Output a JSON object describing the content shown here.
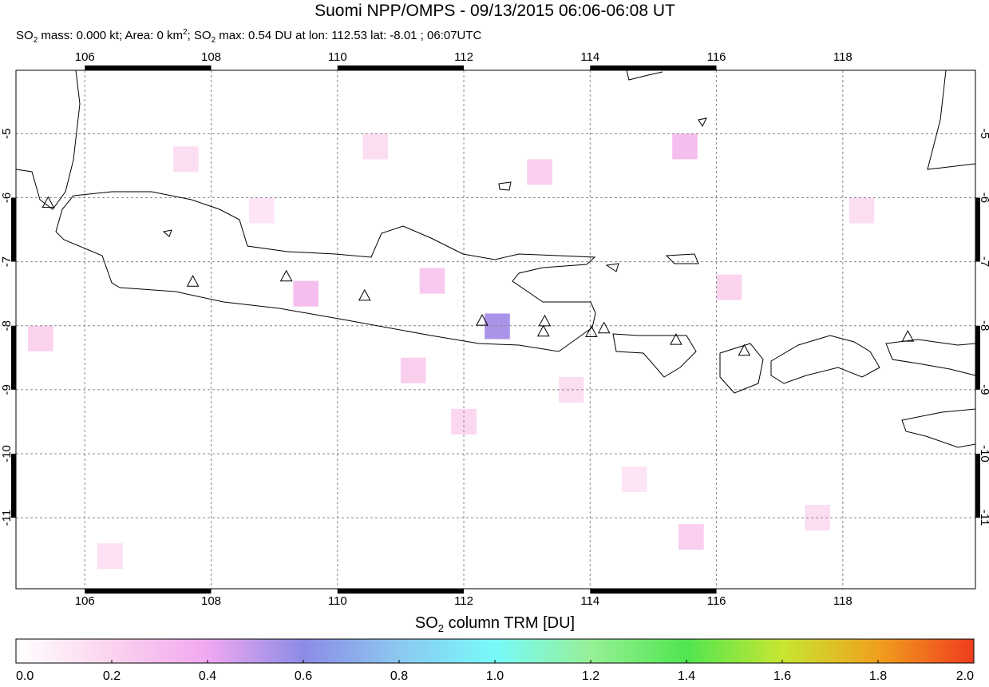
{
  "title": "Suomi NPP/OMPS - 09/13/2015 06:06-06:08 UT",
  "subtitle_parts": [
    "SO",
    "2",
    " mass: 0.000 kt; Area: 0 km",
    "2",
    "; SO",
    "2",
    " max: 0.54 DU at lon: 112.53 lat: -8.01 ; 06:07UTC"
  ],
  "map": {
    "xlim": [
      104.91,
      120.1
    ],
    "ylim": [
      -12.11,
      -4.01
    ],
    "xticks": [
      106,
      108,
      110,
      112,
      114,
      116,
      118
    ],
    "yticks": [
      -5,
      -6,
      -7,
      -8,
      -9,
      -10,
      -11
    ],
    "grid": true,
    "volcanoes": [
      {
        "lon": 105.42,
        "lat": -6.09
      },
      {
        "lon": 107.71,
        "lat": -7.32
      },
      {
        "lon": 109.19,
        "lat": -7.24
      },
      {
        "lon": 110.43,
        "lat": -7.54
      },
      {
        "lon": 112.29,
        "lat": -7.93
      },
      {
        "lon": 113.28,
        "lat": -7.94
      },
      {
        "lon": 113.26,
        "lat": -8.1
      },
      {
        "lon": 114.02,
        "lat": -8.11
      },
      {
        "lon": 114.22,
        "lat": -8.05
      },
      {
        "lon": 115.36,
        "lat": -8.23
      },
      {
        "lon": 116.44,
        "lat": -8.4
      },
      {
        "lon": 119.03,
        "lat": -8.18
      }
    ],
    "pixels": [
      {
        "lon": 112.53,
        "lat": -8.01,
        "value": 0.54
      },
      {
        "lon": 111.5,
        "lat": -7.3,
        "value": 0.25
      },
      {
        "lon": 109.5,
        "lat": -7.5,
        "value": 0.3
      },
      {
        "lon": 115.5,
        "lat": -5.2,
        "value": 0.3
      },
      {
        "lon": 113.2,
        "lat": -5.6,
        "value": 0.22
      },
      {
        "lon": 116.2,
        "lat": -7.4,
        "value": 0.2
      },
      {
        "lon": 111.2,
        "lat": -8.7,
        "value": 0.22
      },
      {
        "lon": 105.3,
        "lat": -8.2,
        "value": 0.2
      },
      {
        "lon": 115.6,
        "lat": -11.3,
        "value": 0.22
      },
      {
        "lon": 107.6,
        "lat": -5.4,
        "value": 0.15
      },
      {
        "lon": 118.3,
        "lat": -6.2,
        "value": 0.15
      },
      {
        "lon": 110.6,
        "lat": -5.2,
        "value": 0.15
      },
      {
        "lon": 112.0,
        "lat": -9.5,
        "value": 0.18
      },
      {
        "lon": 114.7,
        "lat": -10.4,
        "value": 0.12
      },
      {
        "lon": 117.6,
        "lat": -11.0,
        "value": 0.15
      },
      {
        "lon": 106.4,
        "lat": -11.6,
        "value": 0.14
      },
      {
        "lon": 108.8,
        "lat": -6.2,
        "value": 0.12
      },
      {
        "lon": 113.7,
        "lat": -9.0,
        "value": 0.15
      }
    ]
  },
  "colorbar": {
    "label_parts": [
      "SO",
      "2",
      " column TRM [DU]"
    ],
    "range": [
      0,
      2
    ],
    "colors": [
      "#ffffff",
      "#fbd3ee",
      "#f0a8f0",
      "#8c8ce6",
      "#8cc8f0",
      "#78fafa",
      "#96f096",
      "#50e650",
      "#c8e632",
      "#f0a01e",
      "#f03c1e"
    ],
    "ticks": [
      {
        "value": 0,
        "label": "0.0"
      },
      {
        "value": 0.2,
        "label": "0.2"
      },
      {
        "value": 0.4,
        "label": "0.4"
      },
      {
        "value": 0.6,
        "label": "0.6"
      },
      {
        "value": 0.8,
        "label": "0.8"
      },
      {
        "value": 1,
        "label": "1.0"
      },
      {
        "value": 1.2,
        "label": "1.2"
      },
      {
        "value": 1.4,
        "label": "1.4"
      },
      {
        "value": 1.6,
        "label": "1.6"
      },
      {
        "value": 1.8,
        "label": "1.8"
      },
      {
        "value": 2,
        "label": "2.0"
      }
    ]
  }
}
